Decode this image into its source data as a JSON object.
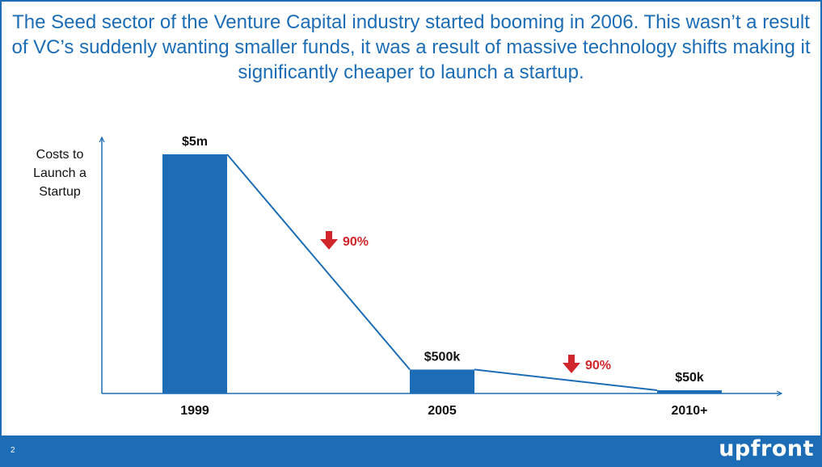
{
  "slide": {
    "title": "The Seed sector of the Venture Capital industry started booming in 2006. This wasn’t a result of VC’s suddenly wanting smaller funds, it was a result of massive technology shifts making it significantly cheaper to launch a startup.",
    "page_number": "2",
    "brand": "upfront"
  },
  "chart_data": {
    "type": "bar",
    "categories": [
      "1999",
      "2005",
      "2010+"
    ],
    "values": [
      5000000,
      500000,
      50000
    ],
    "value_labels": [
      "$5m",
      "$500k",
      "$50k"
    ],
    "ylabel": "Costs to Launch a Startup",
    "xlabel": "",
    "ylim": [
      0,
      5000000
    ],
    "grid": false,
    "trend_line": true,
    "annotations": [
      {
        "text": "90%",
        "icon": "down-arrow-icon",
        "between": [
          "1999",
          "2005"
        ],
        "color": "#d0262b"
      },
      {
        "text": "90%",
        "icon": "down-arrow-icon",
        "between": [
          "2005",
          "2010+"
        ],
        "color": "#d0262b"
      }
    ],
    "colors": {
      "bar": "#1c6db5",
      "axis": "#1c6db5",
      "label": "#111111",
      "annotation": "#d0262b"
    }
  }
}
